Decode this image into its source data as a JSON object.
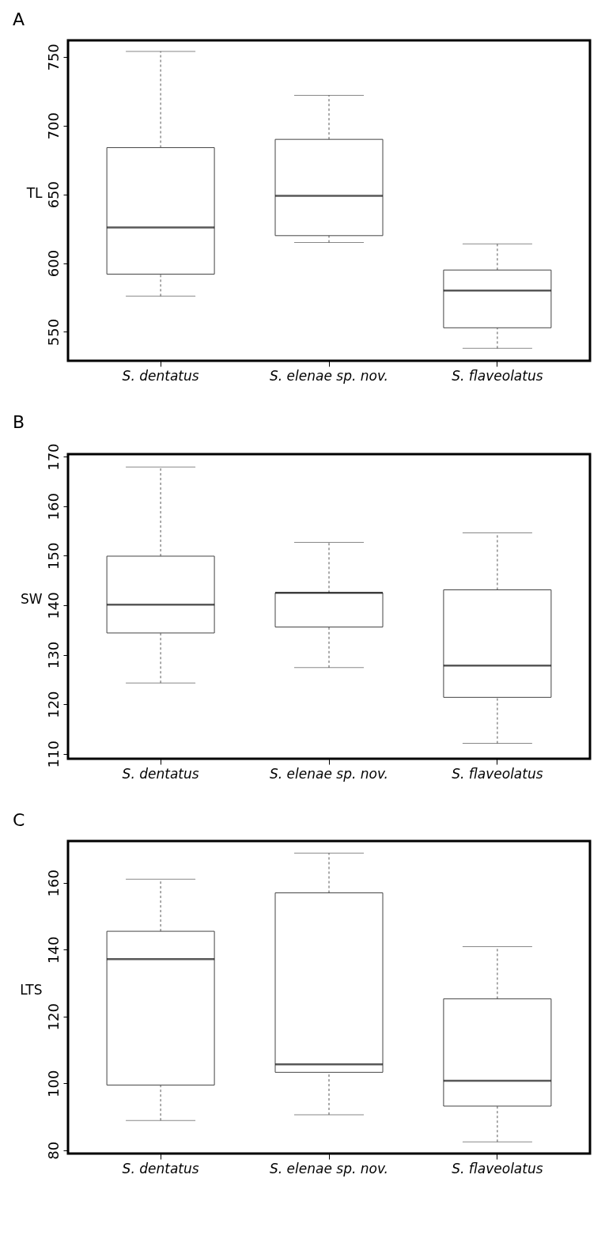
{
  "chart_data": [
    {
      "type": "box",
      "title": "A",
      "ylabel": "TL",
      "categories": [
        "S. dentatus",
        "S. elenae sp. nov.",
        "S. flaveolatus"
      ],
      "ylim": [
        529,
        762
      ],
      "yticks": [
        550,
        600,
        650,
        700,
        750
      ],
      "grid": false,
      "boxes": [
        {
          "low": 576,
          "q1": 592,
          "median": 626,
          "q3": 684,
          "high": 754
        },
        {
          "low": 615,
          "q1": 620,
          "median": 649,
          "q3": 690,
          "high": 722
        },
        {
          "low": 538,
          "q1": 553,
          "median": 580,
          "q3": 595,
          "high": 614
        }
      ]
    },
    {
      "type": "box",
      "title": "B",
      "ylabel": "SW",
      "categories": [
        "S. dentatus",
        "S. elenae sp. nov.",
        "S. flaveolatus"
      ],
      "ylim": [
        109,
        170.5
      ],
      "yticks": [
        110,
        120,
        130,
        140,
        150,
        160,
        170
      ],
      "grid": false,
      "boxes": [
        {
          "low": 124.3,
          "q1": 134.4,
          "median": 140.1,
          "q3": 149.9,
          "high": 167.9
        },
        {
          "low": 127.4,
          "q1": 135.6,
          "median": 142.5,
          "q3": 142.5,
          "high": 152.7
        },
        {
          "low": 112.1,
          "q1": 121.4,
          "median": 127.8,
          "q3": 143.1,
          "high": 154.6
        }
      ]
    },
    {
      "type": "box",
      "title": "C",
      "ylabel": "LTS",
      "categories": [
        "S. dentatus",
        "S. elenae sp. nov.",
        "S. flaveolatus"
      ],
      "ylim": [
        79,
        172.5
      ],
      "yticks": [
        80,
        100,
        120,
        140,
        160
      ],
      "grid": false,
      "boxes": [
        {
          "low": 88.9,
          "q1": 99.5,
          "median": 137.2,
          "q3": 145.5,
          "high": 161.1
        },
        {
          "low": 90.6,
          "q1": 103.3,
          "median": 105.7,
          "q3": 157,
          "high": 168.9
        },
        {
          "low": 82.5,
          "q1": 93.2,
          "median": 100.8,
          "q3": 125.3,
          "high": 140.9
        }
      ]
    }
  ]
}
